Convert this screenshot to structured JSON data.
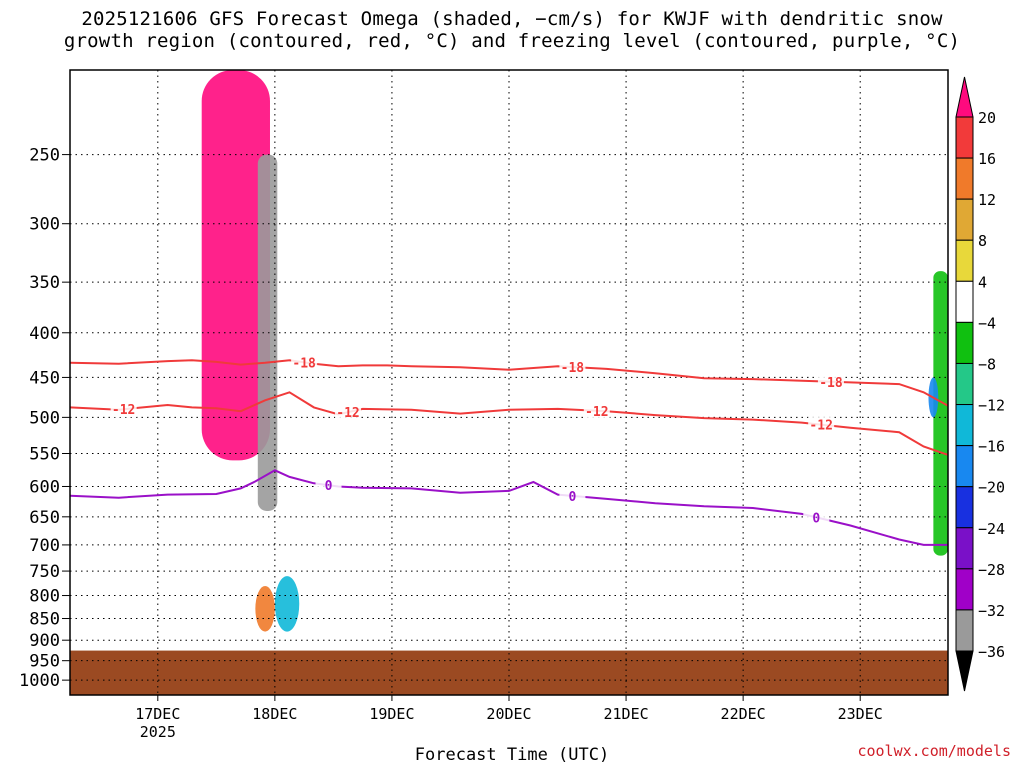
{
  "title_line1": "2025121606 GFS Forecast Omega (shaded, −cm/s) for KWJF with dendritic snow",
  "title_line2": "growth region (contoured, red, °C) and freezing level (contoured, purple, °C)",
  "credit": "coolwx.com/models",
  "colors": {
    "ground": "#9b4a22",
    "dsgz_contour": "#f03a3a",
    "freezing_contour": "#9a10c8",
    "grid": "#999999"
  },
  "chart_data": {
    "type": "heatmap",
    "xlabel": "Forecast Time (UTC)",
    "ylabel": "",
    "x_ticks": [
      {
        "label": "17DEC",
        "sub": "2025",
        "hour": 18
      },
      {
        "label": "18DEC",
        "sub": "",
        "hour": 42
      },
      {
        "label": "19DEC",
        "sub": "",
        "hour": 66
      },
      {
        "label": "20DEC",
        "sub": "",
        "hour": 90
      },
      {
        "label": "21DEC",
        "sub": "",
        "hour": 114
      },
      {
        "label": "22DEC",
        "sub": "",
        "hour": 138
      },
      {
        "label": "23DEC",
        "sub": "",
        "hour": 162
      }
    ],
    "xlim": [
      0,
      180
    ],
    "y_ticks": [
      250,
      300,
      350,
      400,
      450,
      500,
      550,
      600,
      650,
      700,
      750,
      800,
      850,
      900,
      950,
      1000
    ],
    "ylim_hpa": [
      200,
      1040
    ],
    "y_scale": "log",
    "ground_level_hpa": 925,
    "colorbar": {
      "labels": [
        "20",
        "16",
        "12",
        "8",
        "4",
        "−4",
        "−8",
        "−12",
        "−16",
        "−20",
        "−24",
        "−28",
        "−32",
        "−36"
      ],
      "colors": [
        "#ff0a7e",
        "#f23a3a",
        "#f07a2a",
        "#e0a834",
        "#e8d83a",
        "#ffffff",
        "#10c010",
        "#24c888",
        "#10b8d8",
        "#1888f0",
        "#1830e0",
        "#7a10c8",
        "#a000c8",
        "#9a9a9a",
        "#000000"
      ]
    },
    "contours": [
      {
        "label": "-18",
        "color": "#f03a3a",
        "x": [
          0,
          10,
          20,
          25,
          30,
          35,
          40,
          45,
          50,
          55,
          60,
          65,
          70,
          80,
          90,
          100,
          110,
          120,
          130,
          140,
          150,
          160,
          170,
          175,
          180
        ],
        "p": [
          433,
          434,
          431,
          430,
          432,
          435,
          433,
          430,
          434,
          437,
          436,
          436,
          437,
          438,
          441,
          437,
          440,
          445,
          451,
          452,
          454,
          456,
          458,
          468,
          485
        ],
        "labels_at": [
          48,
          103,
          156
        ]
      },
      {
        "label": "-12",
        "color": "#f03a3a",
        "x": [
          0,
          10,
          20,
          25,
          30,
          35,
          40,
          45,
          50,
          55,
          60,
          70,
          80,
          90,
          100,
          110,
          120,
          130,
          140,
          150,
          160,
          170,
          175,
          180
        ],
        "p": [
          487,
          490,
          484,
          487,
          488,
          492,
          478,
          468,
          487,
          496,
          489,
          490,
          495,
          490,
          489,
          492,
          497,
          501,
          503,
          507,
          514,
          520,
          540,
          552
        ],
        "labels_at": [
          11,
          57,
          108,
          154
        ]
      },
      {
        "label": "0",
        "color": "#9a10c8",
        "x": [
          0,
          10,
          20,
          30,
          35,
          38,
          42,
          45,
          50,
          55,
          60,
          70,
          80,
          90,
          95,
          100,
          110,
          120,
          130,
          140,
          150,
          160,
          170,
          175,
          180
        ],
        "p": [
          615,
          618,
          613,
          612,
          603,
          592,
          575,
          585,
          595,
          600,
          602,
          603,
          610,
          607,
          593,
          613,
          620,
          627,
          632,
          635,
          645,
          665,
          690,
          700,
          700
        ],
        "labels_at": [
          53,
          103,
          153
        ]
      }
    ],
    "shaded_blobs": [
      {
        "v": 20,
        "x0": 27,
        "x1": 41,
        "p0": 200,
        "p1": 560,
        "shape": "band"
      },
      {
        "v": -36,
        "x0": 38.5,
        "x1": 42.5,
        "p0": 250,
        "p1": 640,
        "shape": "band"
      },
      {
        "v": 12,
        "x0": 38,
        "x1": 42,
        "p0": 780,
        "p1": 880,
        "shape": "oval"
      },
      {
        "v": -16,
        "x0": 42,
        "x1": 47,
        "p0": 760,
        "p1": 880,
        "shape": "oval"
      },
      {
        "v": -8,
        "x0": 177,
        "x1": 180,
        "p0": 340,
        "p1": 720,
        "shape": "band"
      },
      {
        "v": -20,
        "x0": 176,
        "x1": 178,
        "p0": 450,
        "p1": 500,
        "shape": "oval"
      }
    ]
  }
}
